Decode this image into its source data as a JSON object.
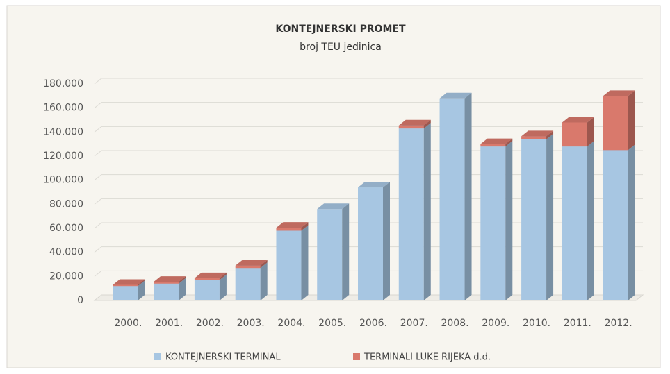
{
  "chart_data": {
    "type": "bar3d_stacked",
    "title": "KONTEJNERSKI PROMET",
    "subtitle": "broj TEU jedinica",
    "categories": [
      "2000.",
      "2001.",
      "2002.",
      "2003.",
      "2004.",
      "2005.",
      "2006.",
      "2007.",
      "2008.",
      "2009.",
      "2010.",
      "2011.",
      "2012."
    ],
    "series": [
      {
        "name": "KONTEJNERSKI TERMINAL",
        "color": "#a7c6e2",
        "values": [
          12000,
          14000,
          17000,
          27000,
          58000,
          76000,
          94000,
          143000,
          168000,
          128000,
          134000,
          128000,
          125000
        ]
      },
      {
        "name": "TERMINALI LUKE RIJEKA d.d.",
        "color": "#d9796c",
        "values": [
          1000,
          1500,
          1500,
          2000,
          2500,
          0,
          0,
          2500,
          0,
          2000,
          2500,
          20000,
          45000
        ]
      }
    ],
    "ylim": [
      0,
      180000
    ],
    "yticks": [
      0,
      {
        "value": 20000,
        "label": "20.000"
      },
      {
        "value": 40000,
        "label": "40.000"
      },
      {
        "value": 60000,
        "label": "60.000"
      },
      {
        "value": 80000,
        "label": "80.000"
      },
      {
        "value": 100000,
        "label": "100.000"
      },
      {
        "value": 120000,
        "label": "120.000"
      },
      {
        "value": 140000,
        "label": "140.000"
      },
      {
        "value": 160000,
        "label": "160.000"
      },
      {
        "value": 180000,
        "label": "180.000"
      }
    ],
    "grid": true,
    "legend": "bottom"
  }
}
